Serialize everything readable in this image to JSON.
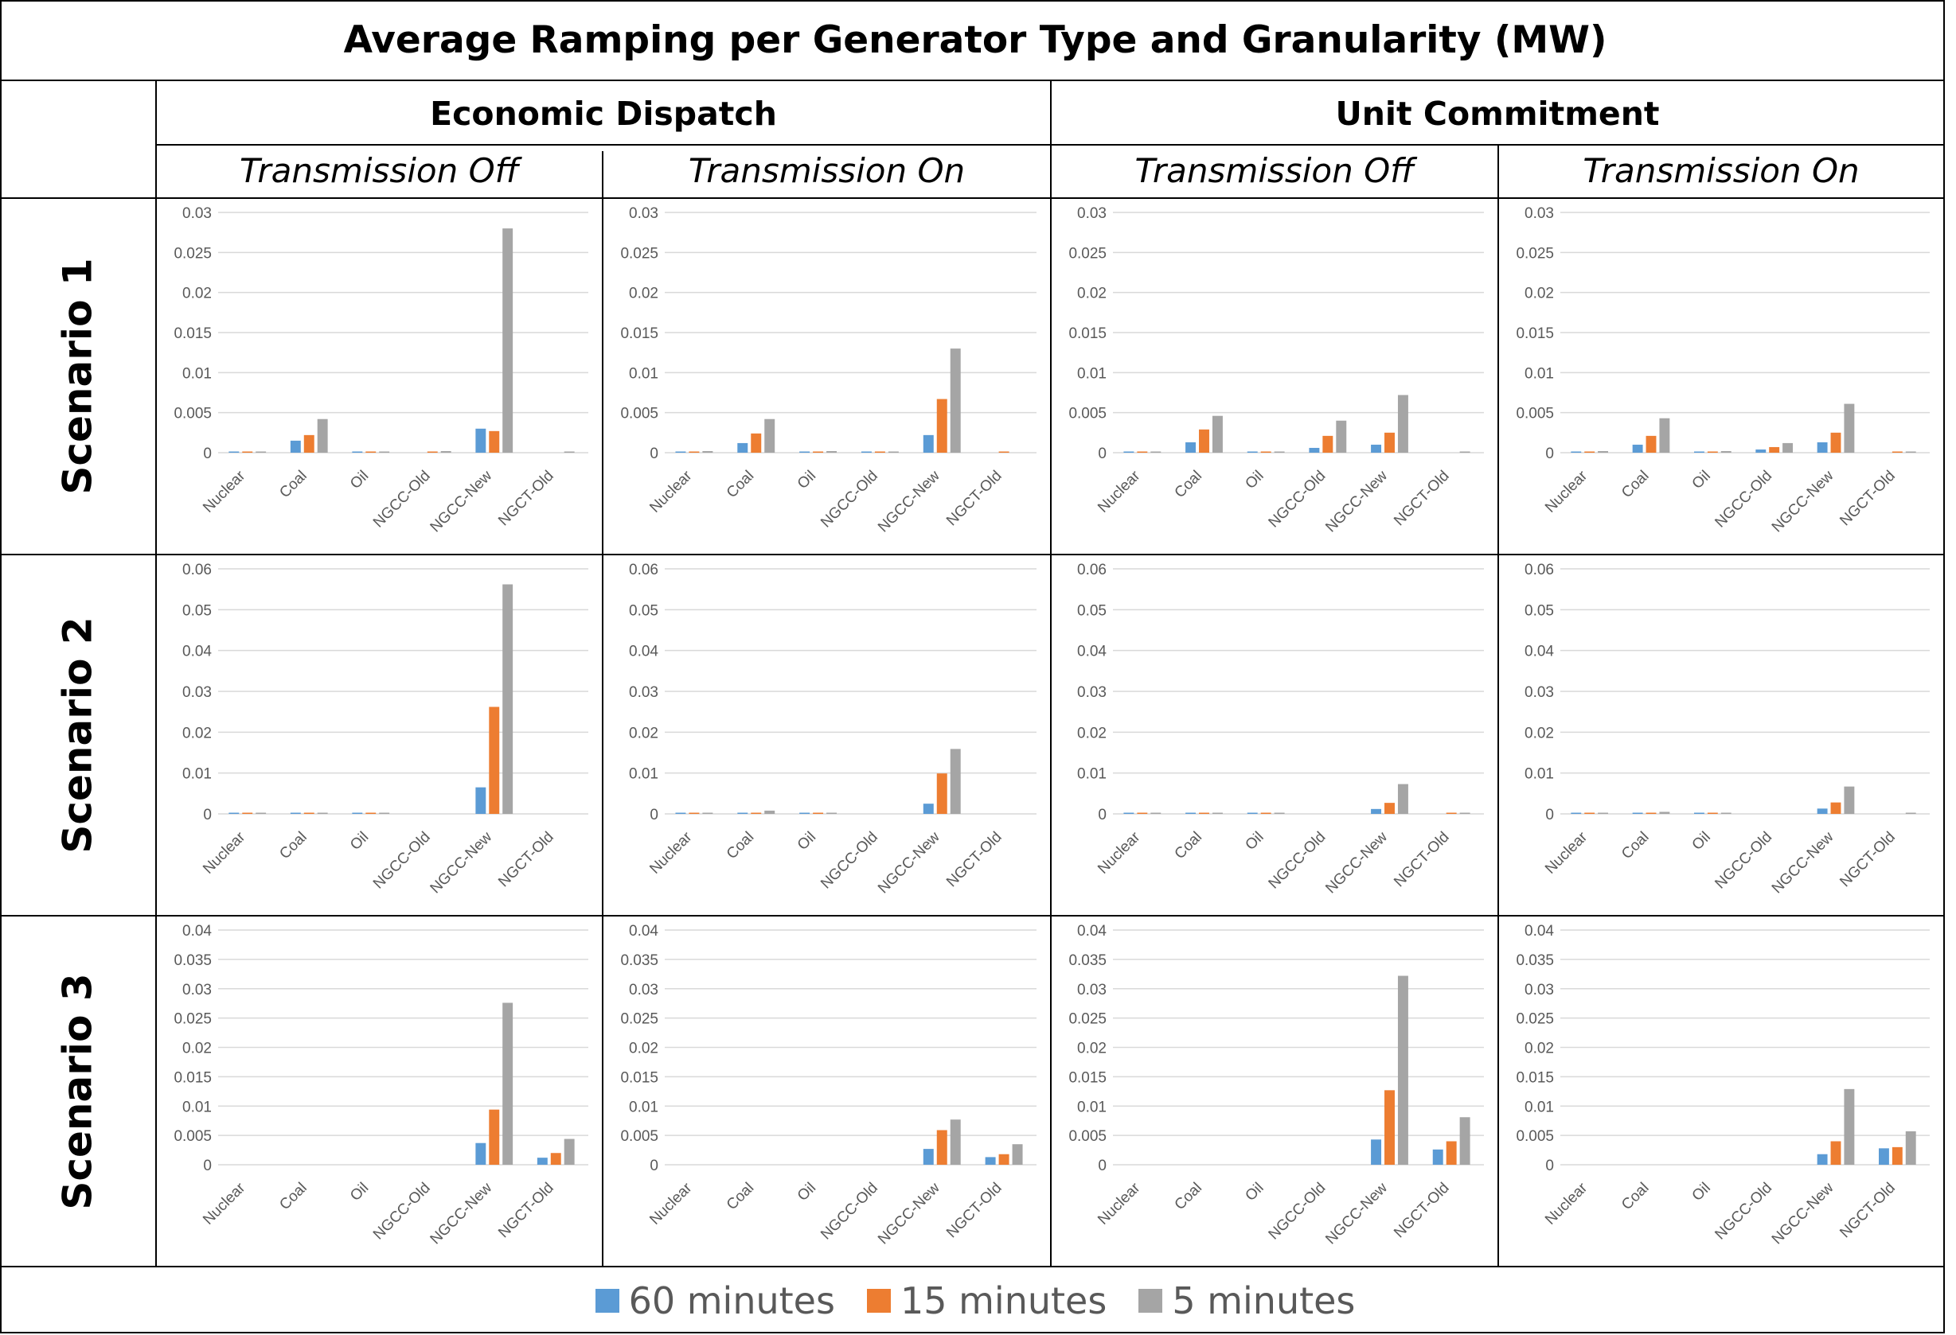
{
  "title": "Average Ramping per Generator Type and Granularity (MW)",
  "groups": [
    {
      "label": "Economic Dispatch"
    },
    {
      "label": "Unit Commitment"
    }
  ],
  "subgroups": [
    {
      "label": "Transmission Off"
    },
    {
      "label": "Transmission On"
    },
    {
      "label": "Transmission Off"
    },
    {
      "label": "Transmission On"
    }
  ],
  "rows": [
    {
      "label": "Scenario 1"
    },
    {
      "label": "Scenario 2"
    },
    {
      "label": "Scenario 3"
    }
  ],
  "legend": [
    {
      "label": "60 minutes",
      "color": "#5B9BD5"
    },
    {
      "label": "15 minutes",
      "color": "#ED7D31"
    },
    {
      "label": "5 minutes",
      "color": "#A5A5A5"
    }
  ],
  "chart_data": [
    {
      "type": "bar",
      "group": "Economic Dispatch",
      "subgroup": "Transmission Off",
      "scenario": "Scenario 1",
      "categories": [
        "Nuclear",
        "Coal",
        "Oil",
        "NGCC-Old",
        "NGCC-New",
        "NGCT-Old"
      ],
      "yticks": [
        "0",
        "0.005",
        "0.01",
        "0.015",
        "0.02",
        "0.025",
        "0.03"
      ],
      "ylim": [
        0,
        0.03
      ],
      "series": [
        {
          "name": "60 minutes",
          "values": [
            0.0001,
            0.0015,
            0.0001,
            0,
            0.003,
            0
          ]
        },
        {
          "name": "15 minutes",
          "values": [
            0.0001,
            0.0022,
            0.0001,
            0.0001,
            0.0027,
            0
          ]
        },
        {
          "name": "5 minutes",
          "values": [
            0.0001,
            0.0042,
            0.0001,
            0.0002,
            0.028,
            0.0001
          ]
        }
      ]
    },
    {
      "type": "bar",
      "group": "Economic Dispatch",
      "subgroup": "Transmission On",
      "scenario": "Scenario 1",
      "categories": [
        "Nuclear",
        "Coal",
        "Oil",
        "NGCC-Old",
        "NGCC-New",
        "NGCT-Old"
      ],
      "yticks": [
        "0",
        "0.005",
        "0.01",
        "0.015",
        "0.02",
        "0.025",
        "0.03"
      ],
      "ylim": [
        0,
        0.03
      ],
      "series": [
        {
          "name": "60 minutes",
          "values": [
            0.0001,
            0.0012,
            0.0001,
            0.0001,
            0.0022,
            0
          ]
        },
        {
          "name": "15 minutes",
          "values": [
            0.0001,
            0.0024,
            0.0001,
            0.0001,
            0.0067,
            0.0001
          ]
        },
        {
          "name": "5 minutes",
          "values": [
            0.0002,
            0.0042,
            0.0002,
            0.0001,
            0.013,
            0
          ]
        }
      ]
    },
    {
      "type": "bar",
      "group": "Unit Commitment",
      "subgroup": "Transmission Off",
      "scenario": "Scenario 1",
      "categories": [
        "Nuclear",
        "Coal",
        "Oil",
        "NGCC-Old",
        "NGCC-New",
        "NGCT-Old"
      ],
      "yticks": [
        "0",
        "0.005",
        "0.01",
        "0.015",
        "0.02",
        "0.025",
        "0.03"
      ],
      "ylim": [
        0,
        0.03
      ],
      "series": [
        {
          "name": "60 minutes",
          "values": [
            0.0001,
            0.0013,
            0.0001,
            0.0006,
            0.001,
            0
          ]
        },
        {
          "name": "15 minutes",
          "values": [
            0.0001,
            0.0029,
            0.0001,
            0.0021,
            0.0025,
            0
          ]
        },
        {
          "name": "5 minutes",
          "values": [
            0.0001,
            0.0046,
            0.0001,
            0.004,
            0.0072,
            0.0001
          ]
        }
      ]
    },
    {
      "type": "bar",
      "group": "Unit Commitment",
      "subgroup": "Transmission On",
      "scenario": "Scenario 1",
      "categories": [
        "Nuclear",
        "Coal",
        "Oil",
        "NGCC-Old",
        "NGCC-New",
        "NGCT-Old"
      ],
      "yticks": [
        "0",
        "0.005",
        "0.01",
        "0.015",
        "0.02",
        "0.025",
        "0.03"
      ],
      "ylim": [
        0,
        0.03
      ],
      "series": [
        {
          "name": "60 minutes",
          "values": [
            0.0001,
            0.001,
            0.0001,
            0.0004,
            0.0013,
            0
          ]
        },
        {
          "name": "15 minutes",
          "values": [
            0.0001,
            0.0021,
            0.0001,
            0.0007,
            0.0025,
            0.0001
          ]
        },
        {
          "name": "5 minutes",
          "values": [
            0.0002,
            0.0043,
            0.0002,
            0.0012,
            0.0061,
            0.0001
          ]
        }
      ]
    },
    {
      "type": "bar",
      "group": "Economic Dispatch",
      "subgroup": "Transmission Off",
      "scenario": "Scenario 2",
      "categories": [
        "Nuclear",
        "Coal",
        "Oil",
        "NGCC-Old",
        "NGCC-New",
        "NGCT-Old"
      ],
      "yticks": [
        "0",
        "0.01",
        "0.02",
        "0.03",
        "0.04",
        "0.05",
        "0.06"
      ],
      "ylim": [
        0,
        0.06
      ],
      "series": [
        {
          "name": "60 minutes",
          "values": [
            0.0002,
            0.0002,
            0.0002,
            0,
            0.0065,
            0
          ]
        },
        {
          "name": "15 minutes",
          "values": [
            0.0002,
            0.0002,
            0.0002,
            0,
            0.0262,
            0
          ]
        },
        {
          "name": "5 minutes",
          "values": [
            0.0002,
            0.0002,
            0.0002,
            0,
            0.0562,
            0
          ]
        }
      ]
    },
    {
      "type": "bar",
      "group": "Economic Dispatch",
      "subgroup": "Transmission On",
      "scenario": "Scenario 2",
      "categories": [
        "Nuclear",
        "Coal",
        "Oil",
        "NGCC-Old",
        "NGCC-New",
        "NGCT-Old"
      ],
      "yticks": [
        "0",
        "0.01",
        "0.02",
        "0.03",
        "0.04",
        "0.05",
        "0.06"
      ],
      "ylim": [
        0,
        0.06
      ],
      "series": [
        {
          "name": "60 minutes",
          "values": [
            0.0002,
            0.0002,
            0.0002,
            0,
            0.0025,
            0
          ]
        },
        {
          "name": "15 minutes",
          "values": [
            0.0002,
            0.0002,
            0.0002,
            0,
            0.0099,
            0
          ]
        },
        {
          "name": "5 minutes",
          "values": [
            0.0002,
            0.0008,
            0.0002,
            0,
            0.0159,
            0
          ]
        }
      ]
    },
    {
      "type": "bar",
      "group": "Unit Commitment",
      "subgroup": "Transmission Off",
      "scenario": "Scenario 2",
      "categories": [
        "Nuclear",
        "Coal",
        "Oil",
        "NGCC-Old",
        "NGCC-New",
        "NGCT-Old"
      ],
      "yticks": [
        "0",
        "0.01",
        "0.02",
        "0.03",
        "0.04",
        "0.05",
        "0.06"
      ],
      "ylim": [
        0,
        0.06
      ],
      "series": [
        {
          "name": "60 minutes",
          "values": [
            0.0002,
            0.0002,
            0.0002,
            0,
            0.0012,
            0
          ]
        },
        {
          "name": "15 minutes",
          "values": [
            0.0002,
            0.0002,
            0.0002,
            0,
            0.0027,
            0.0002
          ]
        },
        {
          "name": "5 minutes",
          "values": [
            0.0002,
            0.0002,
            0.0002,
            0,
            0.0073,
            0.0002
          ]
        }
      ]
    },
    {
      "type": "bar",
      "group": "Unit Commitment",
      "subgroup": "Transmission On",
      "scenario": "Scenario 2",
      "categories": [
        "Nuclear",
        "Coal",
        "Oil",
        "NGCC-Old",
        "NGCC-New",
        "NGCT-Old"
      ],
      "yticks": [
        "0",
        "0.01",
        "0.02",
        "0.03",
        "0.04",
        "0.05",
        "0.06"
      ],
      "ylim": [
        0,
        0.06
      ],
      "series": [
        {
          "name": "60 minutes",
          "values": [
            0.0002,
            0.0002,
            0.0002,
            0,
            0.0013,
            0
          ]
        },
        {
          "name": "15 minutes",
          "values": [
            0.0002,
            0.0002,
            0.0002,
            0,
            0.0028,
            0
          ]
        },
        {
          "name": "5 minutes",
          "values": [
            0.0002,
            0.0005,
            0.0002,
            0,
            0.0067,
            0.0002
          ]
        }
      ]
    },
    {
      "type": "bar",
      "group": "Economic Dispatch",
      "subgroup": "Transmission Off",
      "scenario": "Scenario 3",
      "categories": [
        "Nuclear",
        "Coal",
        "Oil",
        "NGCC-Old",
        "NGCC-New",
        "NGCT-Old"
      ],
      "yticks": [
        "0",
        "0.005",
        "0.01",
        "0.015",
        "0.02",
        "0.025",
        "0.03",
        "0.035",
        "0.04"
      ],
      "ylim": [
        0,
        0.04
      ],
      "series": [
        {
          "name": "60 minutes",
          "values": [
            0,
            0,
            0,
            0,
            0.0037,
            0.0012
          ]
        },
        {
          "name": "15 minutes",
          "values": [
            0,
            0,
            0,
            0,
            0.0094,
            0.002
          ]
        },
        {
          "name": "5 minutes",
          "values": [
            0,
            0,
            0,
            0,
            0.0276,
            0.0044
          ]
        }
      ]
    },
    {
      "type": "bar",
      "group": "Economic Dispatch",
      "subgroup": "Transmission On",
      "scenario": "Scenario 3",
      "categories": [
        "Nuclear",
        "Coal",
        "Oil",
        "NGCC-Old",
        "NGCC-New",
        "NGCT-Old"
      ],
      "yticks": [
        "0",
        "0.005",
        "0.01",
        "0.015",
        "0.02",
        "0.025",
        "0.03",
        "0.035",
        "0.04"
      ],
      "ylim": [
        0,
        0.04
      ],
      "series": [
        {
          "name": "60 minutes",
          "values": [
            0,
            0,
            0,
            0,
            0.0027,
            0.0013
          ]
        },
        {
          "name": "15 minutes",
          "values": [
            0,
            0,
            0,
            0,
            0.0059,
            0.0018
          ]
        },
        {
          "name": "5 minutes",
          "values": [
            0,
            0,
            0,
            0,
            0.0077,
            0.0035
          ]
        }
      ]
    },
    {
      "type": "bar",
      "group": "Unit Commitment",
      "subgroup": "Transmission Off",
      "scenario": "Scenario 3",
      "categories": [
        "Nuclear",
        "Coal",
        "Oil",
        "NGCC-Old",
        "NGCC-New",
        "NGCT-Old"
      ],
      "yticks": [
        "0",
        "0.005",
        "0.01",
        "0.015",
        "0.02",
        "0.025",
        "0.03",
        "0.035",
        "0.04"
      ],
      "ylim": [
        0,
        0.04
      ],
      "series": [
        {
          "name": "60 minutes",
          "values": [
            0,
            0,
            0,
            0,
            0.0043,
            0.0026
          ]
        },
        {
          "name": "15 minutes",
          "values": [
            0,
            0,
            0,
            0,
            0.0127,
            0.004
          ]
        },
        {
          "name": "5 minutes",
          "values": [
            0,
            0,
            0,
            0,
            0.0322,
            0.0081
          ]
        }
      ]
    },
    {
      "type": "bar",
      "group": "Unit Commitment",
      "subgroup": "Transmission On",
      "scenario": "Scenario 3",
      "categories": [
        "Nuclear",
        "Coal",
        "Oil",
        "NGCC-Old",
        "NGCC-New",
        "NGCT-Old"
      ],
      "yticks": [
        "0",
        "0.005",
        "0.01",
        "0.015",
        "0.02",
        "0.025",
        "0.03",
        "0.035",
        "0.04"
      ],
      "ylim": [
        0,
        0.04
      ],
      "series": [
        {
          "name": "60 minutes",
          "values": [
            0,
            0,
            0,
            0,
            0.0018,
            0.0028
          ]
        },
        {
          "name": "15 minutes",
          "values": [
            0,
            0,
            0,
            0,
            0.004,
            0.003
          ]
        },
        {
          "name": "5 minutes",
          "values": [
            0,
            0,
            0,
            0,
            0.0129,
            0.0057
          ]
        }
      ]
    }
  ]
}
